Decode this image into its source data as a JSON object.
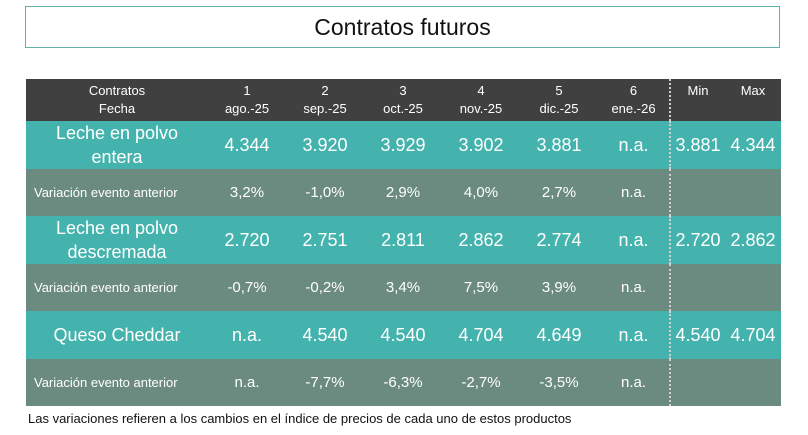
{
  "title": "Contratos futuros",
  "header": {
    "left_top": "Contratos",
    "left_bottom": "Fecha",
    "contracts": [
      {
        "num": "1",
        "date": "ago.-25"
      },
      {
        "num": "2",
        "date": "sep.-25"
      },
      {
        "num": "3",
        "date": "oct.-25"
      },
      {
        "num": "4",
        "date": "nov.-25"
      },
      {
        "num": "5",
        "date": "dic.-25"
      },
      {
        "num": "6",
        "date": "ene.-26"
      }
    ],
    "min": "Min",
    "max": "Max"
  },
  "rows": [
    {
      "name": "Leche en polvo entera",
      "name_line1": "Leche en polvo",
      "name_line2": "entera",
      "values": [
        "4.344",
        "3.920",
        "3.929",
        "3.902",
        "3.881",
        "n.a."
      ],
      "min": "3.881",
      "max": "4.344",
      "variation_label": "Variación evento anterior",
      "variation": [
        "3,2%",
        "-1,0%",
        "2,9%",
        "4,0%",
        "2,7%",
        "n.a."
      ]
    },
    {
      "name": "Leche en polvo descremada",
      "name_line1": "Leche en polvo",
      "name_line2": "descremada",
      "values": [
        "2.720",
        "2.751",
        "2.811",
        "2.862",
        "2.774",
        "n.a."
      ],
      "min": "2.720",
      "max": "2.862",
      "variation_label": "Variación evento anterior",
      "variation": [
        "-0,7%",
        "-0,2%",
        "3,4%",
        "7,5%",
        "3,9%",
        "n.a."
      ]
    },
    {
      "name": "Queso Cheddar",
      "name_line1": "Queso Cheddar",
      "name_line2": "",
      "values": [
        "n.a.",
        "4.540",
        "4.540",
        "4.704",
        "4.649",
        "n.a."
      ],
      "min": "4.540",
      "max": "4.704",
      "variation_label": "Variación evento anterior",
      "variation": [
        "n.a.",
        "-7,7%",
        "-6,3%",
        "-2,7%",
        "-3,5%",
        "n.a."
      ]
    }
  ],
  "footnote": "Las variaciones refieren a los cambios en el índice de precios de cada uno de estos productos",
  "colors": {
    "header_bg": "#404040",
    "product_row_bg": "#45b3ad",
    "variation_row_bg": "#6b8a80",
    "title_border": "#5fb3ac"
  }
}
